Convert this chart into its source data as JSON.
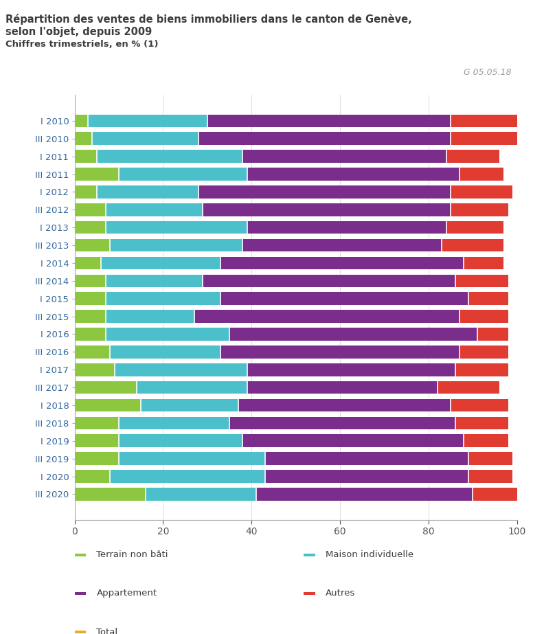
{
  "title_line1": "Répartition des ventes de biens immobiliers dans le canton de Genève,",
  "title_line2": "selon l'objet, depuis 2009",
  "subtitle": "Chiffres trimestriels, en % (1)",
  "watermark": "G 05.05.18",
  "categories": [
    "I 2010",
    "III 2010",
    "I 2011",
    "III 2011",
    "I 2012",
    "III 2012",
    "I 2013",
    "III 2013",
    "I 2014",
    "III 2014",
    "I 2015",
    "III 2015",
    "I 2016",
    "III 2016",
    "I 2017",
    "III 2017",
    "I 2018",
    "III 2018",
    "I 2019",
    "III 2019",
    "I 2020",
    "III 2020"
  ],
  "terrain_non_bati": [
    3,
    4,
    5,
    10,
    5,
    7,
    7,
    8,
    6,
    7,
    7,
    7,
    7,
    8,
    9,
    14,
    15,
    10,
    10,
    10,
    8,
    16
  ],
  "maison_individuelle": [
    27,
    24,
    33,
    29,
    23,
    22,
    32,
    30,
    27,
    22,
    26,
    20,
    28,
    25,
    30,
    25,
    22,
    25,
    28,
    33,
    35,
    25
  ],
  "appartement": [
    55,
    57,
    46,
    48,
    57,
    56,
    45,
    45,
    55,
    57,
    56,
    60,
    56,
    54,
    47,
    43,
    48,
    51,
    50,
    46,
    46,
    49
  ],
  "autres": [
    15,
    15,
    12,
    10,
    14,
    13,
    13,
    14,
    9,
    12,
    9,
    11,
    7,
    11,
    12,
    14,
    13,
    12,
    10,
    10,
    10,
    10
  ],
  "color_terrain": "#8dc63f",
  "color_maison": "#4bbfca",
  "color_appartement": "#7b2d8b",
  "color_autres": "#e03c31",
  "color_total": "#f5a623",
  "background_color": "#ffffff",
  "bar_height": 0.72,
  "xlim": [
    0,
    100
  ],
  "xticks": [
    0,
    20,
    40,
    60,
    80,
    100
  ],
  "legend_items": [
    "Terrain non bâti",
    "Maison individuelle",
    "Appartement",
    "Autres",
    "Total"
  ],
  "title_color": "#3d3d3d",
  "subtitle_color": "#3d3d3d",
  "watermark_color": "#999999",
  "label_color": "#336699",
  "axis_color": "#aaaaaa"
}
